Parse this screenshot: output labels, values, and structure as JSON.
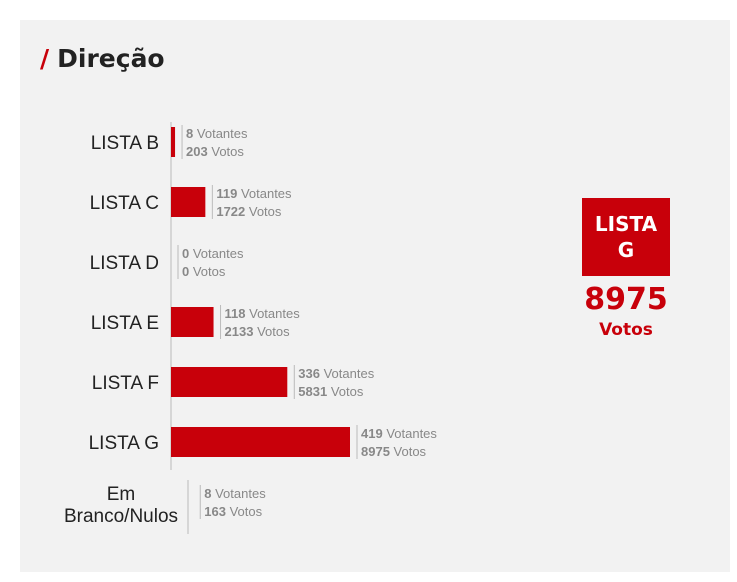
{
  "title": "Direção",
  "title_prefix": "/",
  "colors": {
    "accent": "#c8000a",
    "text": "#222222",
    "muted": "#888888",
    "panel": "#f2f2f2"
  },
  "winner": {
    "name": "LISTA G",
    "votes": "8975",
    "votes_label": "Votos"
  },
  "chart_data": {
    "type": "bar",
    "orientation": "horizontal",
    "title": "Direção",
    "categories": [
      "LISTA B",
      "LISTA C",
      "LISTA D",
      "LISTA E",
      "LISTA F",
      "LISTA G",
      "Em Branco/Nulos"
    ],
    "category_lines": [
      [
        "LISTA B"
      ],
      [
        "LISTA C"
      ],
      [
        "LISTA D"
      ],
      [
        "LISTA E"
      ],
      [
        "LISTA F"
      ],
      [
        "LISTA G"
      ],
      [
        "Em",
        "Branco/Nulos"
      ]
    ],
    "values": [
      203,
      1722,
      0,
      2133,
      5831,
      8975,
      163
    ],
    "votantes": [
      8,
      119,
      0,
      118,
      336,
      419,
      8
    ],
    "votantes_label": "Votantes",
    "votos_label": "Votos",
    "bar_color": "#c8000a",
    "xmax": 9000,
    "grid": false
  }
}
